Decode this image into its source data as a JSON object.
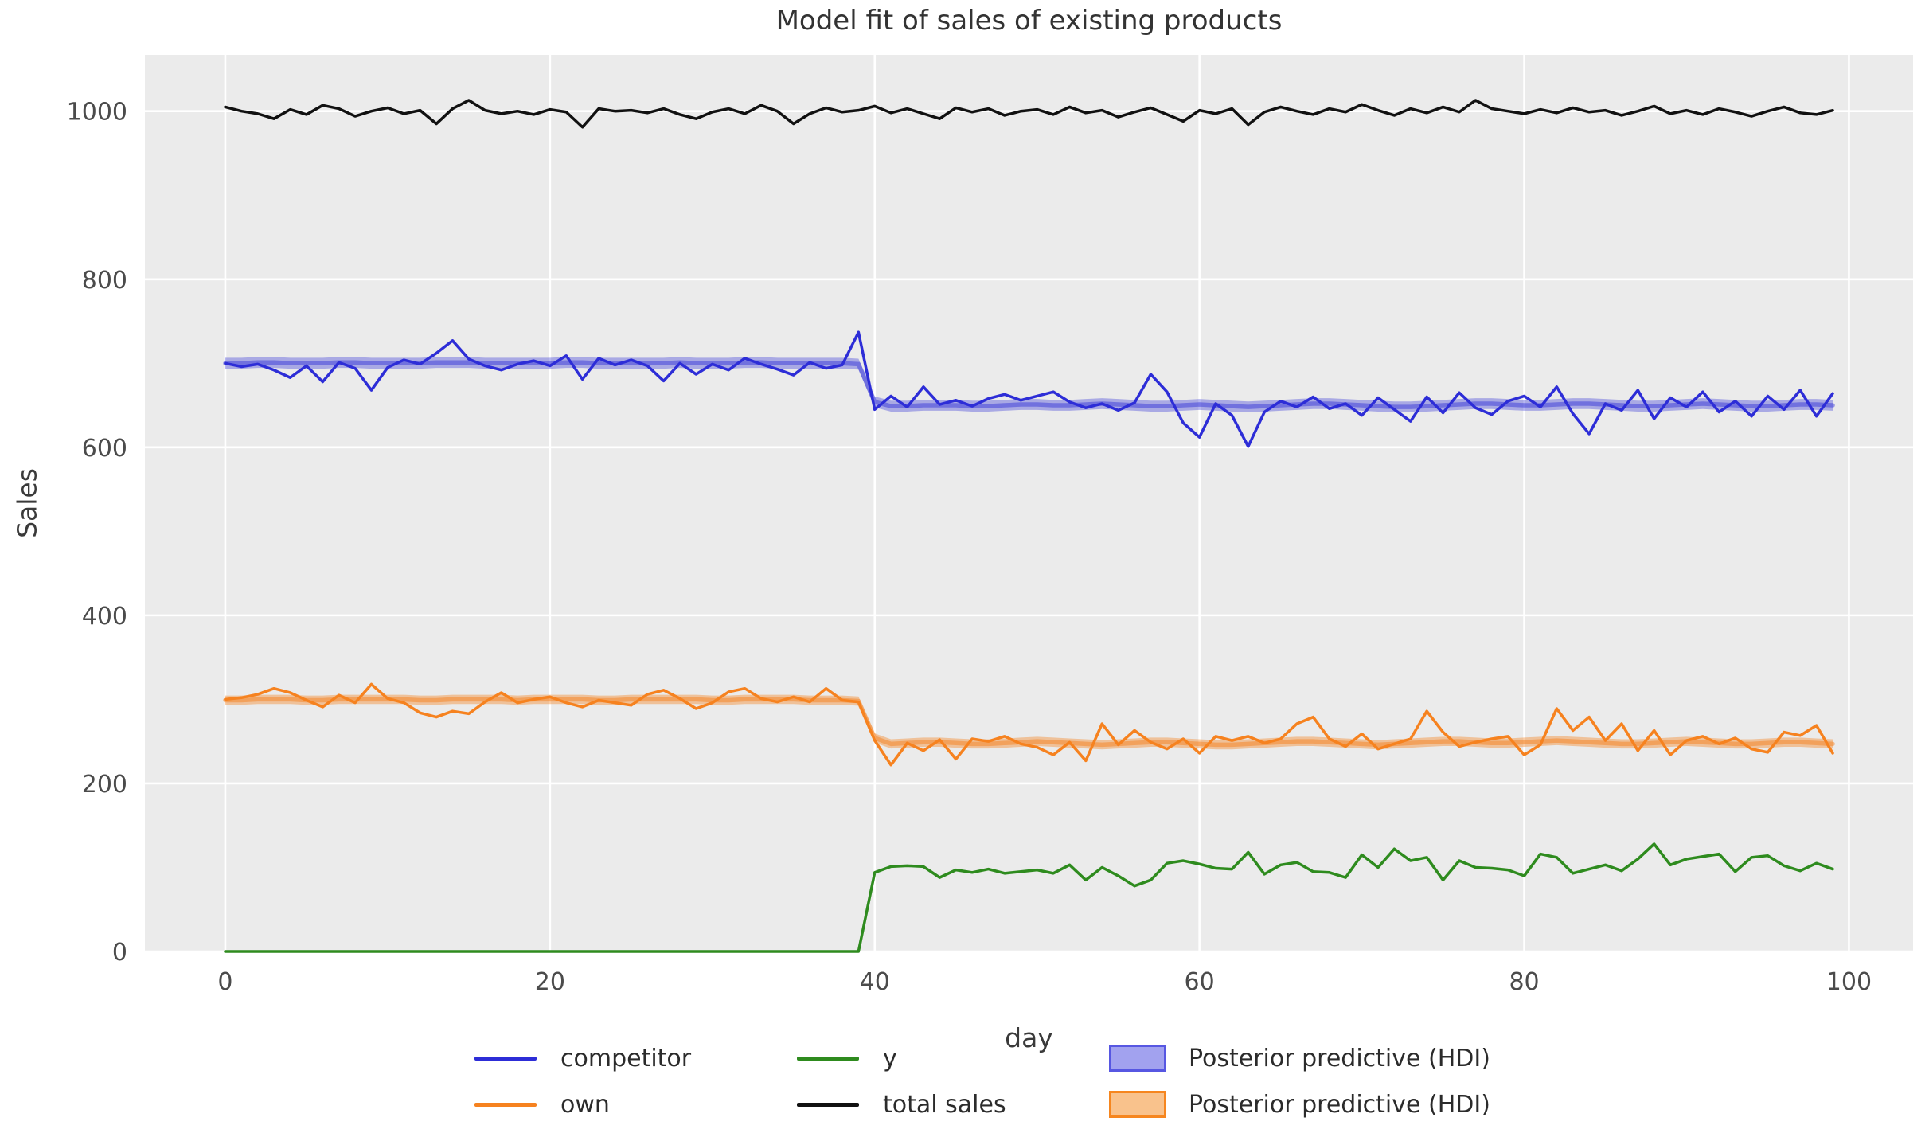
{
  "style": {
    "plot_bg": "#ebebeb",
    "grid_color": "#ffffff",
    "tick_color": "#4b4b4b",
    "title_color": "#333333"
  },
  "legend": {
    "entries": [
      {
        "label": "competitor",
        "type": "line",
        "color": "#2d2dd7"
      },
      {
        "label": "own",
        "type": "line",
        "color": "#f6821f"
      },
      {
        "label": "y",
        "type": "line",
        "color": "#2e8b1e"
      },
      {
        "label": "total sales",
        "type": "line",
        "color": "#111111"
      },
      {
        "label": "Posterior predictive (HDI)",
        "type": "patch",
        "fill": "#a2a2ef",
        "border": "#5757e2"
      },
      {
        "label": "Posterior predictive (HDI)",
        "type": "patch",
        "fill": "#f9c28c",
        "border": "#f6861f"
      }
    ]
  },
  "chart_data": {
    "type": "line",
    "title": "Model fit of sales of existing products",
    "xlabel": "day",
    "ylabel": "Sales",
    "xlim": [
      -4.95,
      103.95
    ],
    "ylim": [
      0,
      1067
    ],
    "xticks": [
      0,
      20,
      40,
      60,
      80,
      100
    ],
    "yticks": [
      0,
      200,
      400,
      600,
      800,
      1000
    ],
    "grid": true,
    "legend_position": "bottom",
    "x": [
      0,
      1,
      2,
      3,
      4,
      5,
      6,
      7,
      8,
      9,
      10,
      11,
      12,
      13,
      14,
      15,
      16,
      17,
      18,
      19,
      20,
      21,
      22,
      23,
      24,
      25,
      26,
      27,
      28,
      29,
      30,
      31,
      32,
      33,
      34,
      35,
      36,
      37,
      38,
      39,
      40,
      41,
      42,
      43,
      44,
      45,
      46,
      47,
      48,
      49,
      50,
      51,
      52,
      53,
      54,
      55,
      56,
      57,
      58,
      59,
      60,
      61,
      62,
      63,
      64,
      65,
      66,
      67,
      68,
      69,
      70,
      71,
      72,
      73,
      74,
      75,
      76,
      77,
      78,
      79,
      80,
      81,
      82,
      83,
      84,
      85,
      86,
      87,
      88,
      89,
      90,
      91,
      92,
      93,
      94,
      95,
      96,
      97,
      98,
      99
    ],
    "series": [
      {
        "name": "competitor",
        "color": "#2d2dd7",
        "width": 3.5,
        "values": [
          700,
          696,
          699,
          692,
          683,
          697,
          678,
          701,
          694,
          668,
          695,
          704,
          699,
          712,
          727,
          705,
          697,
          692,
          699,
          703,
          697,
          709,
          681,
          706,
          698,
          704,
          697,
          679,
          700,
          687,
          699,
          692,
          706,
          699,
          693,
          686,
          701,
          694,
          698,
          737,
          645,
          661,
          648,
          672,
          651,
          656,
          649,
          658,
          663,
          656,
          661,
          666,
          654,
          647,
          652,
          644,
          653,
          687,
          666,
          629,
          612,
          652,
          638,
          601,
          642,
          655,
          648,
          660,
          646,
          652,
          638,
          659,
          645,
          631,
          660,
          641,
          665,
          647,
          639,
          655,
          661,
          648,
          672,
          640,
          616,
          652,
          644,
          668,
          634,
          659,
          648,
          666,
          642,
          655,
          637,
          661,
          645,
          668,
          637,
          664
        ]
      },
      {
        "name": "own",
        "color": "#f6821f",
        "width": 3.5,
        "values": [
          300,
          302,
          306,
          313,
          308,
          299,
          291,
          305,
          296,
          318,
          301,
          296,
          284,
          279,
          286,
          283,
          297,
          308,
          296,
          300,
          303,
          296,
          291,
          299,
          296,
          293,
          306,
          311,
          301,
          289,
          296,
          309,
          313,
          301,
          297,
          303,
          297,
          313,
          299,
          297,
          251,
          222,
          248,
          239,
          252,
          229,
          253,
          250,
          256,
          247,
          243,
          234,
          249,
          227,
          271,
          246,
          263,
          249,
          241,
          253,
          236,
          256,
          251,
          256,
          248,
          253,
          271,
          279,
          253,
          244,
          259,
          241,
          247,
          253,
          286,
          261,
          244,
          249,
          253,
          256,
          234,
          246,
          289,
          263,
          279,
          251,
          271,
          239,
          263,
          234,
          251,
          256,
          247,
          254,
          241,
          237,
          261,
          257,
          269,
          236
        ]
      },
      {
        "name": "y",
        "color": "#2e8b1e",
        "width": 3.5,
        "values": [
          0,
          0,
          0,
          0,
          0,
          0,
          0,
          0,
          0,
          0,
          0,
          0,
          0,
          0,
          0,
          0,
          0,
          0,
          0,
          0,
          0,
          0,
          0,
          0,
          0,
          0,
          0,
          0,
          0,
          0,
          0,
          0,
          0,
          0,
          0,
          0,
          0,
          0,
          0,
          0,
          94,
          101,
          102,
          101,
          88,
          97,
          94,
          98,
          93,
          95,
          97,
          93,
          103,
          85,
          100,
          90,
          78,
          85,
          105,
          108,
          104,
          99,
          98,
          118,
          92,
          103,
          106,
          95,
          94,
          88,
          115,
          100,
          122,
          108,
          112,
          85,
          108,
          100,
          99,
          97,
          90,
          116,
          112,
          93,
          98,
          103,
          96,
          110,
          128,
          103,
          110,
          113,
          116,
          95,
          112,
          114,
          102,
          96,
          105,
          98
        ]
      },
      {
        "name": "total sales",
        "color": "#111111",
        "width": 3.5,
        "values": [
          1005,
          1000,
          997,
          991,
          1002,
          996,
          1007,
          1003,
          994,
          1000,
          1004,
          997,
          1001,
          985,
          1003,
          1013,
          1001,
          997,
          1000,
          996,
          1002,
          999,
          981,
          1003,
          1000,
          1001,
          998,
          1003,
          996,
          991,
          999,
          1003,
          997,
          1007,
          1000,
          985,
          997,
          1004,
          999,
          1001,
          1006,
          998,
          1003,
          997,
          991,
          1004,
          999,
          1003,
          995,
          1000,
          1002,
          996,
          1005,
          998,
          1001,
          993,
          999,
          1004,
          996,
          988,
          1001,
          997,
          1003,
          984,
          999,
          1005,
          1000,
          996,
          1003,
          999,
          1008,
          1001,
          995,
          1003,
          998,
          1005,
          999,
          1013,
          1003,
          1000,
          997,
          1002,
          998,
          1004,
          999,
          1001,
          995,
          1000,
          1006,
          997,
          1001,
          996,
          1003,
          999,
          994,
          1000,
          1005,
          998,
          996,
          1001
        ]
      }
    ],
    "bands": [
      {
        "name": "Posterior predictive (HDI)",
        "color": "#2d2dd7",
        "fill_alpha": 0.35,
        "mean_alpha": 0.45,
        "mean_width": 5.5,
        "halfwidth": 6.5,
        "mean": [
          700,
          700,
          701,
          701,
          700,
          700,
          700,
          701,
          701,
          700,
          700,
          700,
          700,
          701,
          701,
          701,
          700,
          700,
          700,
          700,
          700,
          701,
          701,
          700,
          700,
          700,
          700,
          700,
          701,
          700,
          700,
          700,
          701,
          701,
          700,
          700,
          700,
          700,
          700,
          699,
          654,
          649,
          649,
          650,
          650,
          650,
          649,
          649,
          650,
          651,
          651,
          650,
          650,
          651,
          652,
          651,
          650,
          649,
          649,
          650,
          651,
          650,
          649,
          648,
          649,
          650,
          651,
          652,
          652,
          651,
          650,
          649,
          648,
          648,
          649,
          650,
          651,
          652,
          652,
          651,
          650,
          650,
          651,
          652,
          652,
          651,
          650,
          649,
          649,
          650,
          651,
          652,
          651,
          650,
          649,
          649,
          650,
          651,
          651,
          650
        ]
      },
      {
        "name": "Posterior predictive (HDI)",
        "color": "#f6821f",
        "fill_alpha": 0.4,
        "mean_alpha": 0.5,
        "mean_width": 5.5,
        "halfwidth": 5.5,
        "mean": [
          299,
          299,
          300,
          300,
          300,
          299,
          299,
          300,
          300,
          300,
          300,
          300,
          299,
          299,
          300,
          300,
          300,
          300,
          299,
          300,
          300,
          300,
          300,
          299,
          299,
          300,
          300,
          300,
          300,
          300,
          299,
          299,
          300,
          300,
          300,
          300,
          299,
          299,
          299,
          298,
          254,
          247,
          248,
          249,
          249,
          248,
          247,
          247,
          248,
          249,
          250,
          249,
          248,
          247,
          246,
          247,
          248,
          249,
          249,
          248,
          247,
          246,
          246,
          247,
          248,
          249,
          250,
          250,
          249,
          248,
          247,
          246,
          247,
          248,
          249,
          250,
          250,
          249,
          248,
          248,
          249,
          250,
          251,
          250,
          249,
          248,
          247,
          247,
          248,
          249,
          250,
          249,
          248,
          247,
          247,
          248,
          249,
          249,
          248,
          247
        ]
      }
    ]
  }
}
